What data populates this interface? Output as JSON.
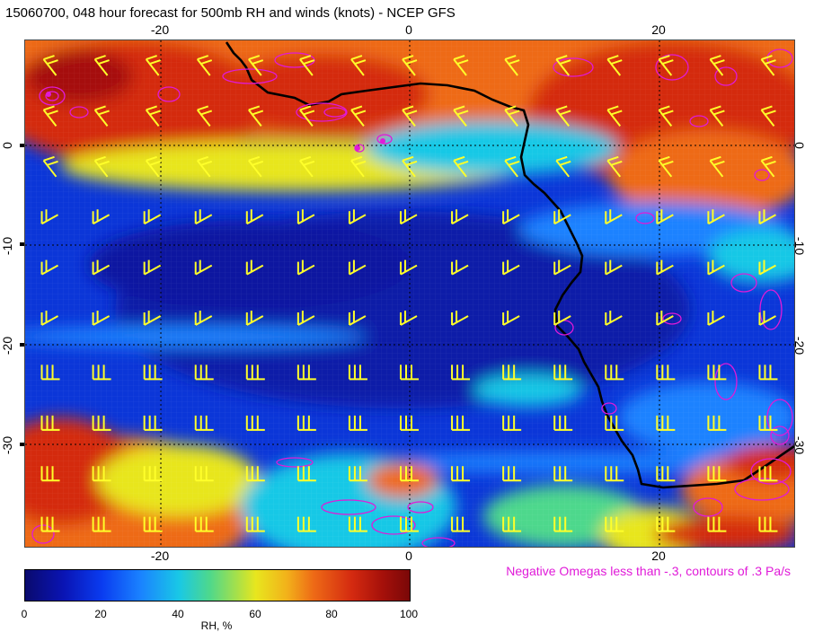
{
  "title": "15060700, 048 hour forecast for 500mb RH and winds (knots) - NCEP GFS",
  "axes": {
    "top_ticks": [
      "-20",
      "0",
      "20"
    ],
    "bottom_ticks": [
      "-20",
      "0",
      "20"
    ],
    "left_ticks": [
      "0",
      "-10",
      "-20",
      "-30"
    ],
    "right_ticks": [
      "0",
      "-10",
      "-20",
      "-30"
    ]
  },
  "note": "Negative Omegas less than -.3, contours of .3 Pa/s",
  "colorbar": {
    "labels": [
      "0",
      "20",
      "40",
      "60",
      "80",
      "100"
    ],
    "title": "RH, %",
    "colors": [
      "#0a0a6e",
      "#0a3cf0",
      "#19c8e6",
      "#e8e61e",
      "#ee6a16",
      "#7a0808"
    ]
  },
  "colors": {
    "wind_barbs": "#ffff2a",
    "omega_contours": "#e01ad8",
    "coastline": "#000000"
  }
}
